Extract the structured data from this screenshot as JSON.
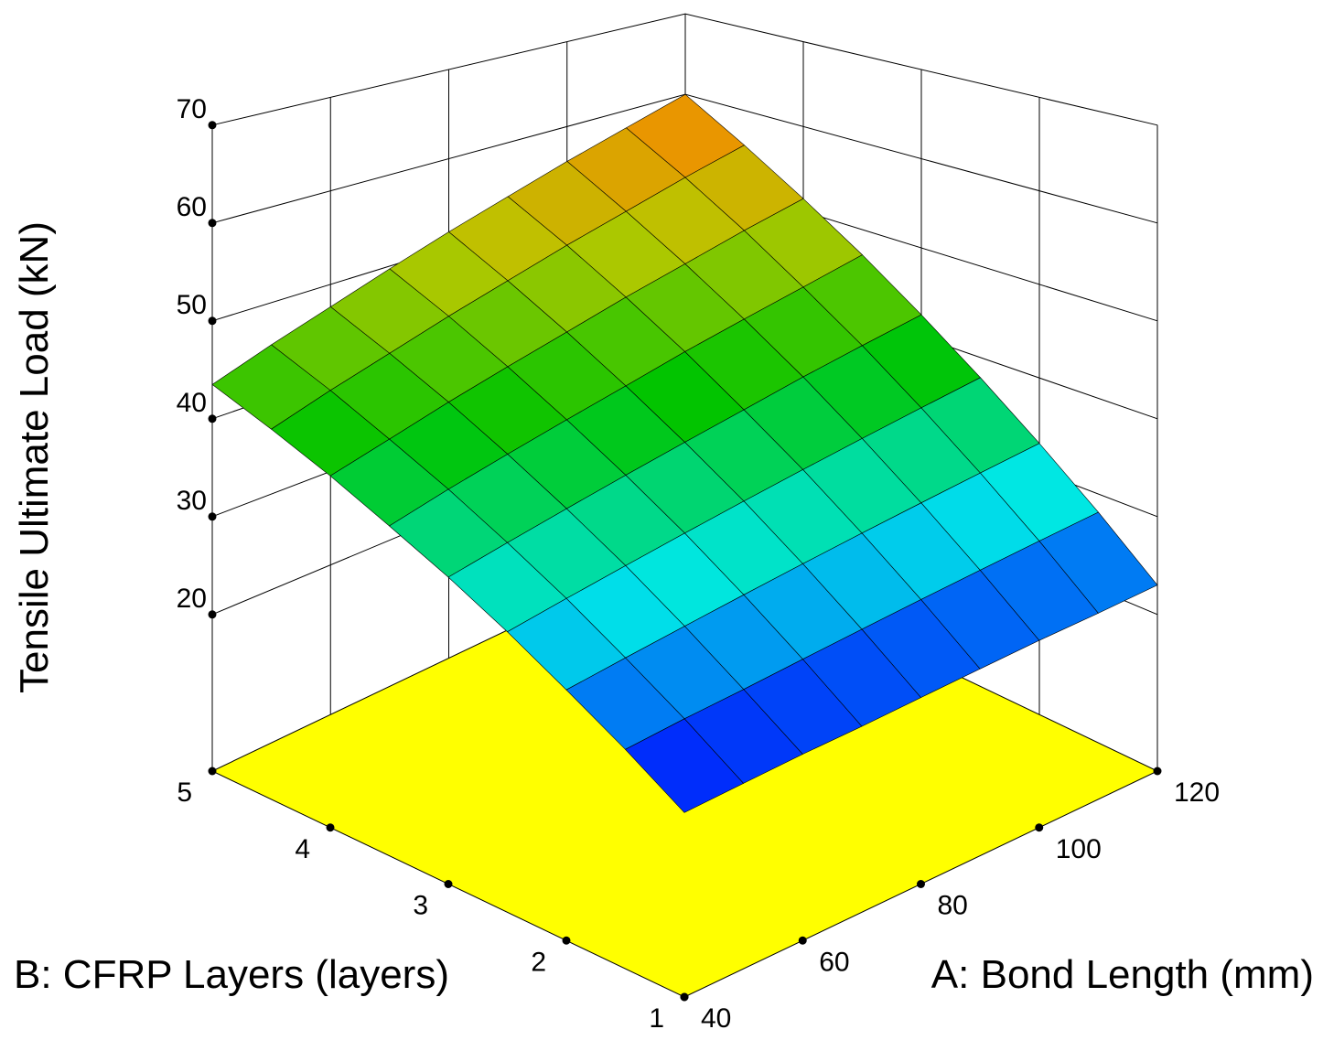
{
  "chart_data": {
    "type": "surface",
    "x_label": "A: Bond Length (mm)",
    "y_label": "B: CFRP Layers (layers)",
    "z_label": "Tensile Ultimate Load (kN)",
    "x": [
      40,
      50,
      60,
      70,
      80,
      90,
      100,
      110,
      120
    ],
    "y": [
      1,
      1.5,
      2,
      2.5,
      3,
      3.5,
      4,
      4.5,
      5
    ],
    "z": [
      [
        20,
        20.4,
        20.8,
        21.1,
        21.5,
        21.9,
        22.3,
        22.6,
        23
      ],
      [
        23.4,
        24,
        24.5,
        25.1,
        25.7,
        26.3,
        26.9,
        27.5,
        28.1
      ],
      [
        26.6,
        27.4,
        28.2,
        29,
        29.8,
        30.6,
        31.4,
        32.2,
        33
      ],
      [
        29.8,
        30.8,
        31.8,
        32.8,
        33.8,
        34.8,
        35.8,
        36.8,
        37.8
      ],
      [
        32.8,
        34,
        35.2,
        36.4,
        37.6,
        38.8,
        40.1,
        41.3,
        42.5
      ],
      [
        35.6,
        37.1,
        38.5,
        39.9,
        41.3,
        42.8,
        44.2,
        45.6,
        47.1
      ],
      [
        38.4,
        40,
        41.7,
        43.3,
        44.9,
        46.6,
        48.2,
        49.9,
        51.5
      ],
      [
        41,
        42.9,
        44.7,
        46.6,
        48.4,
        50.3,
        52.1,
        54,
        55.8
      ],
      [
        43.5,
        45.6,
        47.6,
        49.7,
        51.8,
        53.8,
        55.9,
        57.9,
        60
      ]
    ],
    "xlim": [
      40,
      120
    ],
    "ylim": [
      1,
      5
    ],
    "zlim": [
      4,
      70
    ],
    "xticks": [
      40,
      60,
      80,
      100,
      120
    ],
    "yticks": [
      1,
      2,
      3,
      4,
      5
    ],
    "zticks": [
      20,
      30,
      40,
      50,
      60,
      70
    ],
    "grid": true,
    "floor_color": "#ffff00",
    "colorscale": [
      "#0000ff",
      "#00e8e8",
      "#00c400",
      "#b8c800",
      "#ff8000"
    ]
  }
}
